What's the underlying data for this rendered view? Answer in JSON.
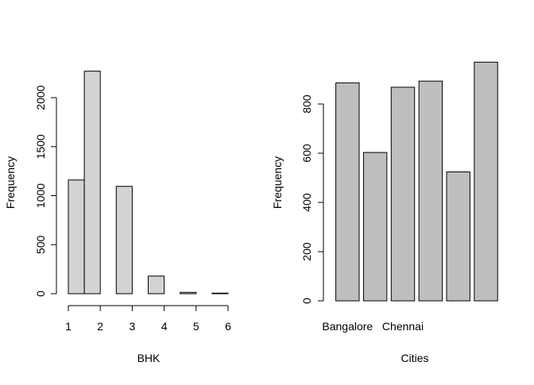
{
  "chart_data": [
    {
      "type": "bar",
      "subtype": "histogram",
      "xlabel": "BHK",
      "ylabel": "Frequency",
      "x_ticks": [
        "1",
        "2",
        "3",
        "4",
        "5",
        "6"
      ],
      "x_range": [
        1,
        6
      ],
      "y_ticks": [
        "0",
        "500",
        "1000",
        "1500",
        "2000"
      ],
      "ylim": [
        0,
        2300
      ],
      "bins": [
        {
          "from": 1.0,
          "to": 1.5,
          "count": 1160
        },
        {
          "from": 1.5,
          "to": 2.0,
          "count": 2270
        },
        {
          "from": 2.0,
          "to": 2.5,
          "count": 0
        },
        {
          "from": 2.5,
          "to": 3.0,
          "count": 1095
        },
        {
          "from": 3.0,
          "to": 3.5,
          "count": 0
        },
        {
          "from": 3.5,
          "to": 4.0,
          "count": 180
        },
        {
          "from": 4.0,
          "to": 4.5,
          "count": 0
        },
        {
          "from": 4.5,
          "to": 5.0,
          "count": 14
        },
        {
          "from": 5.0,
          "to": 5.5,
          "count": 0
        },
        {
          "from": 5.5,
          "to": 6.0,
          "count": 6
        }
      ],
      "bar_color": "#d3d3d3",
      "grid": false
    },
    {
      "type": "bar",
      "xlabel": "Cities",
      "ylabel": "Frequency",
      "categories": [
        "Bangalore",
        "",
        "Chennai",
        "",
        "",
        ""
      ],
      "values": [
        886,
        603,
        868,
        893,
        524,
        970
      ],
      "y_ticks": [
        "0",
        "200",
        "400",
        "600",
        "800"
      ],
      "ylim": [
        0,
        970
      ],
      "bar_color": "#bebebe",
      "grid": false
    }
  ]
}
